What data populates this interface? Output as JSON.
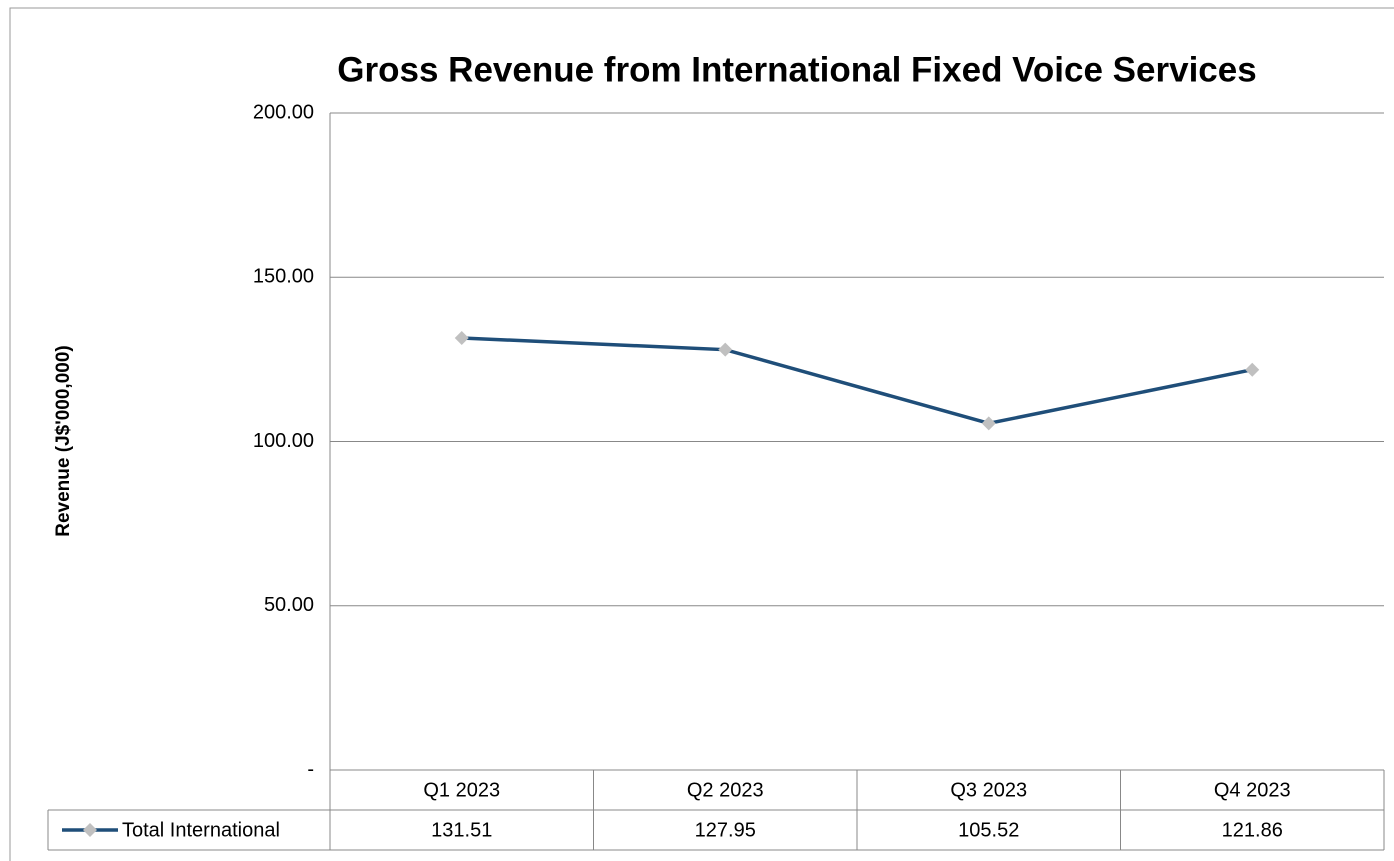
{
  "chart_data": {
    "type": "line",
    "title": "Gross Revenue from International Fixed Voice Services",
    "y_label": "Revenue (J$'000,000)",
    "categories": [
      "Q1 2023",
      "Q2 2023",
      "Q3 2023",
      "Q4 2023"
    ],
    "series": [
      {
        "name": "Total International",
        "color": "#1f4e79",
        "marker_color": "#c0c0c0",
        "values": [
          131.51,
          127.95,
          105.52,
          121.86
        ]
      }
    ],
    "ylim": [
      0,
      200
    ],
    "yticks": [
      {
        "value": 0,
        "label": "-"
      },
      {
        "value": 50,
        "label": "50.00"
      },
      {
        "value": 100,
        "label": "100.00"
      },
      {
        "value": 150,
        "label": "150.00"
      },
      {
        "value": 200,
        "label": "200.00"
      }
    ],
    "grid": true,
    "data_table": true
  }
}
